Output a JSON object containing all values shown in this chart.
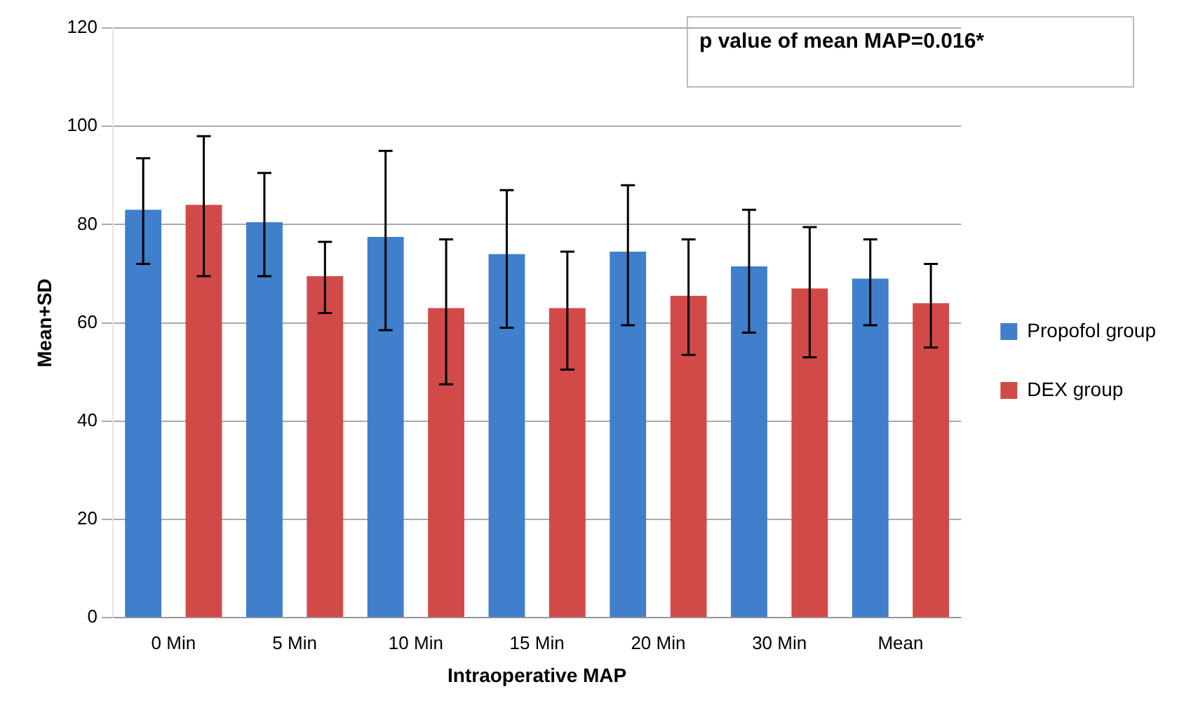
{
  "chart_data": {
    "type": "bar",
    "xlabel": "Intraoperative MAP",
    "ylabel": "Mean+SD",
    "categories": [
      "0 Min",
      "5 Min",
      "10 Min",
      "15 Min",
      "20 Min",
      "30 Min",
      "Mean"
    ],
    "series": [
      {
        "name": "Propofol group",
        "color": "#3f7fcb",
        "values": [
          83,
          80.5,
          77.5,
          74,
          74.5,
          71.5,
          69
        ],
        "errors": [
          [
            72,
            93.5
          ],
          [
            69.5,
            90.5
          ],
          [
            58.5,
            95
          ],
          [
            59,
            87
          ],
          [
            59.5,
            88
          ],
          [
            58,
            83
          ],
          [
            59.5,
            77
          ]
        ]
      },
      {
        "name": "DEX group",
        "color": "#d24a48",
        "values": [
          84,
          69.5,
          63,
          63,
          65.5,
          67,
          64
        ],
        "errors": [
          [
            69.5,
            98
          ],
          [
            62,
            76.5
          ],
          [
            47.5,
            77
          ],
          [
            50.5,
            74.5
          ],
          [
            53.5,
            77
          ],
          [
            53,
            79.5
          ],
          [
            55,
            72
          ]
        ]
      }
    ],
    "ylim": [
      0,
      120
    ],
    "yticks": [
      0,
      20,
      40,
      60,
      80,
      100,
      120
    ],
    "grid": "y",
    "legend": "right",
    "annotations": [
      "p value of mean MAP=0.016*"
    ]
  }
}
